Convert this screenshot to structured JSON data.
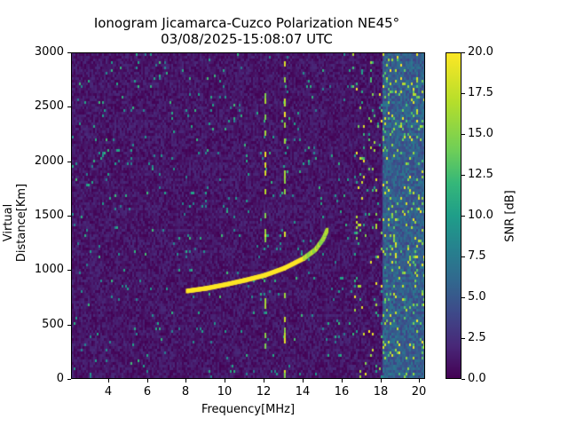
{
  "chart_data": {
    "type": "heatmap",
    "title": "Ionogram Jicamarca-Cuzco Polarization NE45°",
    "subtitle": "03/08/2025-15:08:07 UTC",
    "xlabel": "Frequency[MHz]",
    "ylabel": "Virtual Distance[Km]",
    "xlim": [
      2.1,
      20.3
    ],
    "ylim": [
      0,
      3000
    ],
    "x_ticks": [
      4,
      6,
      8,
      10,
      12,
      14,
      16,
      18,
      20
    ],
    "y_ticks": [
      0,
      500,
      1000,
      1500,
      2000,
      2500,
      3000
    ],
    "grid": false,
    "colorbar": {
      "label": "SNR [dB]",
      "range": [
        0.0,
        20.0
      ],
      "ticks": [
        "0.0",
        "2.5",
        "5.0",
        "7.5",
        "10.0",
        "12.5",
        "15.0",
        "17.5",
        "20.0"
      ],
      "colormap": "viridis"
    },
    "trace": {
      "description": "Strong ionospheric echo trace (high SNR)",
      "points": [
        {
          "freq_mhz": 8.0,
          "distance_km": 820
        },
        {
          "freq_mhz": 9.0,
          "distance_km": 845
        },
        {
          "freq_mhz": 10.0,
          "distance_km": 880
        },
        {
          "freq_mhz": 11.0,
          "distance_km": 920
        },
        {
          "freq_mhz": 12.0,
          "distance_km": 965
        },
        {
          "freq_mhz": 13.0,
          "distance_km": 1030
        },
        {
          "freq_mhz": 14.0,
          "distance_km": 1120
        },
        {
          "freq_mhz": 14.6,
          "distance_km": 1200
        },
        {
          "freq_mhz": 15.0,
          "distance_km": 1300
        },
        {
          "freq_mhz": 15.2,
          "distance_km": 1380
        }
      ]
    },
    "notable_features": [
      {
        "type": "vertical interference",
        "freq_mhz": 12.0,
        "snr_db": 20
      },
      {
        "type": "vertical interference",
        "freq_mhz": 13.0,
        "snr_db": 20
      },
      {
        "type": "broadband noise band",
        "freq_range_mhz": [
          16.5,
          20.3
        ],
        "snr_db_range": [
          5,
          20
        ]
      }
    ],
    "background_snr_db": [
      0,
      3
    ]
  }
}
